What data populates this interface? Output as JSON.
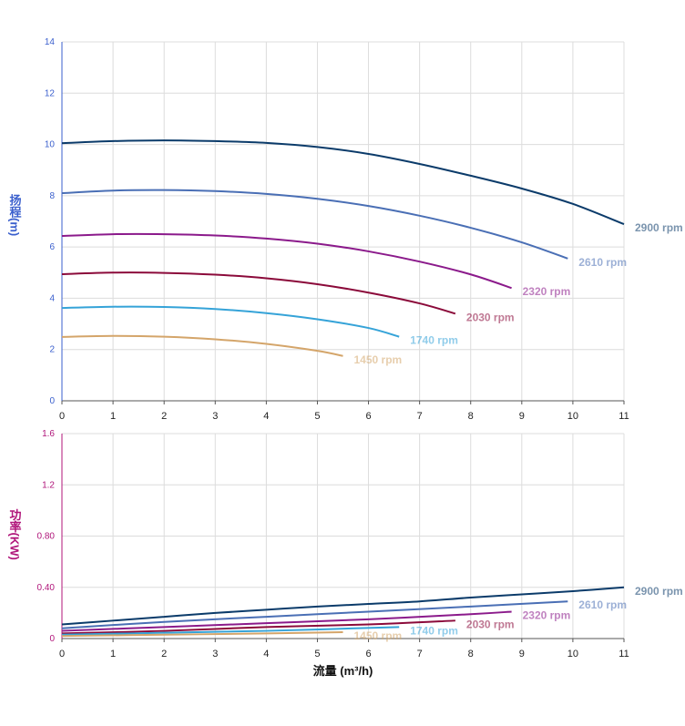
{
  "chart_data": [
    {
      "type": "line",
      "ylabel": "扬程(m)",
      "label_color": "#3a5fcd",
      "xlim": [
        0,
        11
      ],
      "xticks": [
        0,
        1,
        2,
        3,
        4,
        5,
        6,
        7,
        8,
        9,
        10,
        11
      ],
      "ylim": [
        0,
        14
      ],
      "yticks": [
        0,
        2,
        4,
        6,
        8,
        10,
        12,
        14
      ],
      "grid": true,
      "series": [
        {
          "name": "2900 rpm",
          "color": "#0b3b6a",
          "x": [
            0,
            1,
            2,
            3,
            4,
            5,
            6,
            7,
            8,
            9,
            10,
            11
          ],
          "values": [
            10.05,
            10.13,
            10.16,
            10.13,
            10.06,
            9.9,
            9.63,
            9.24,
            8.78,
            8.28,
            7.68,
            6.89
          ]
        },
        {
          "name": "2610 rpm",
          "color": "#4a6fb5",
          "x": [
            0,
            1,
            2,
            3,
            4,
            5,
            6,
            7,
            8,
            9,
            9.9
          ],
          "values": [
            8.1,
            8.2,
            8.22,
            8.18,
            8.07,
            7.88,
            7.6,
            7.22,
            6.75,
            6.18,
            5.55
          ]
        },
        {
          "name": "2320 rpm",
          "color": "#8b1a8b",
          "x": [
            0,
            1,
            2,
            3,
            4,
            5,
            6,
            7,
            8,
            8.8
          ],
          "values": [
            6.43,
            6.5,
            6.5,
            6.45,
            6.33,
            6.13,
            5.83,
            5.43,
            4.93,
            4.4
          ]
        },
        {
          "name": "2030 rpm",
          "color": "#8b0a3a",
          "x": [
            0,
            1,
            2,
            3,
            4,
            5,
            6,
            7,
            7.7
          ],
          "values": [
            4.94,
            5.0,
            4.99,
            4.92,
            4.78,
            4.55,
            4.22,
            3.8,
            3.4
          ]
        },
        {
          "name": "1740 rpm",
          "color": "#35a3d8",
          "x": [
            0,
            1,
            2,
            3,
            4,
            5,
            6,
            6.6
          ],
          "values": [
            3.62,
            3.67,
            3.66,
            3.58,
            3.42,
            3.18,
            2.84,
            2.5
          ]
        },
        {
          "name": "1450 rpm",
          "color": "#d4a56a",
          "x": [
            0,
            1,
            2,
            3,
            4,
            5,
            5.5
          ],
          "values": [
            2.49,
            2.53,
            2.5,
            2.4,
            2.22,
            1.95,
            1.75
          ]
        }
      ]
    },
    {
      "type": "line",
      "ylabel": "功率(KW)",
      "xlabel": "流量 (m³/h)",
      "label_color": "#b0157a",
      "xlim": [
        0,
        11
      ],
      "xticks": [
        0,
        1,
        2,
        3,
        4,
        5,
        6,
        7,
        8,
        9,
        10,
        11
      ],
      "ylim": [
        0,
        1.6
      ],
      "yticks": [
        0,
        {
          "value": 0.4,
          "label": "0.40"
        },
        {
          "value": 0.8,
          "label": "0.80"
        },
        1.2,
        1.6
      ],
      "grid": true,
      "series": [
        {
          "name": "2900 rpm",
          "color": "#0b3b6a",
          "x": [
            0,
            1,
            2,
            3,
            4,
            5,
            6,
            7,
            8,
            9,
            10,
            11
          ],
          "values": [
            0.11,
            0.14,
            0.17,
            0.2,
            0.225,
            0.25,
            0.27,
            0.29,
            0.32,
            0.345,
            0.37,
            0.4
          ]
        },
        {
          "name": "2610 rpm",
          "color": "#4a6fb5",
          "x": [
            0,
            2,
            4,
            6,
            8,
            9.9
          ],
          "values": [
            0.08,
            0.13,
            0.17,
            0.21,
            0.25,
            0.29
          ]
        },
        {
          "name": "2320 rpm",
          "color": "#8b1a8b",
          "x": [
            0,
            2,
            4,
            6,
            8,
            8.8
          ],
          "values": [
            0.06,
            0.09,
            0.12,
            0.15,
            0.19,
            0.21
          ]
        },
        {
          "name": "2030 rpm",
          "color": "#8b0a3a",
          "x": [
            0,
            2,
            4,
            6,
            7.7
          ],
          "values": [
            0.04,
            0.06,
            0.09,
            0.11,
            0.14
          ]
        },
        {
          "name": "1740 rpm",
          "color": "#35a3d8",
          "x": [
            0,
            2,
            4,
            6.6
          ],
          "values": [
            0.03,
            0.045,
            0.06,
            0.09
          ]
        },
        {
          "name": "1450 rpm",
          "color": "#d4a56a",
          "x": [
            0,
            2,
            4,
            5.5
          ],
          "values": [
            0.02,
            0.03,
            0.04,
            0.05
          ]
        }
      ]
    }
  ]
}
